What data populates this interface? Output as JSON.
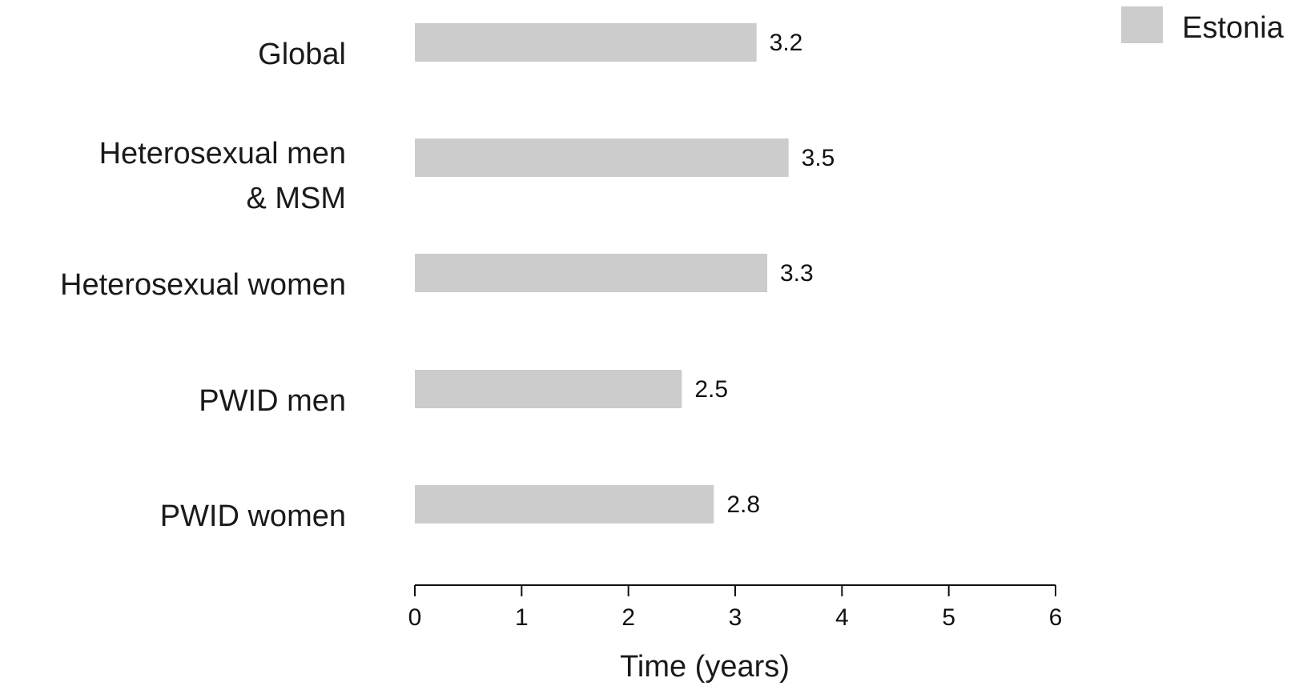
{
  "chart_data": {
    "type": "bar",
    "orientation": "horizontal",
    "categories": [
      [
        "Global"
      ],
      [
        "Heterosexual men",
        "& MSM"
      ],
      [
        "Heterosexual women"
      ],
      [
        "PWID men"
      ],
      [
        "PWID women"
      ]
    ],
    "series": [
      {
        "name": "Estonia",
        "color": "#cccccc",
        "values": [
          3.2,
          3.5,
          3.3,
          2.5,
          2.8
        ]
      }
    ],
    "value_labels": [
      "3.2",
      "3.5",
      "3.3",
      "2.5",
      "2.8"
    ],
    "xlabel": "Time (years)",
    "ylabel": "",
    "xlim": [
      0,
      6
    ],
    "xticks": [
      0,
      1,
      2,
      3,
      4,
      5,
      6
    ],
    "grid": false,
    "legend": {
      "position": "top-right",
      "entries": [
        "Estonia"
      ]
    }
  }
}
